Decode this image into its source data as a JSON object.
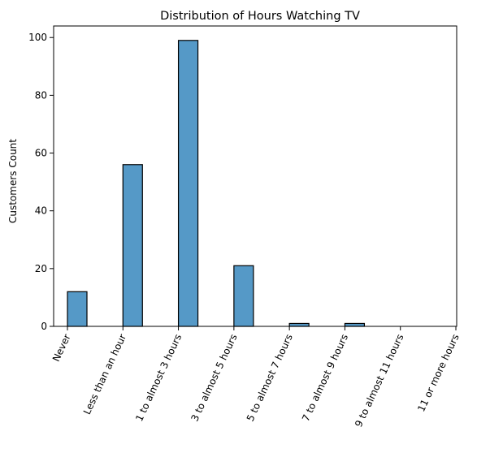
{
  "chart_data": {
    "type": "bar",
    "title": "Distribution of Hours Watching TV",
    "xlabel": "",
    "ylabel": "Customers Count",
    "categories": [
      "Never",
      "Less than an hour",
      "1 to almost 3 hours",
      "3 to almost 5 hours",
      "5 to almost 7 hours",
      "7 to almost 9 hours",
      "9 to almost 11 hours",
      "11 or more hours"
    ],
    "values": [
      12,
      56,
      99,
      21,
      1,
      1,
      0,
      0
    ],
    "ylim": [
      0,
      104
    ],
    "yticks": [
      0,
      20,
      40,
      60,
      80,
      100
    ],
    "grid": false,
    "bar_color": "#5599c7",
    "edge_color": "#000000"
  }
}
